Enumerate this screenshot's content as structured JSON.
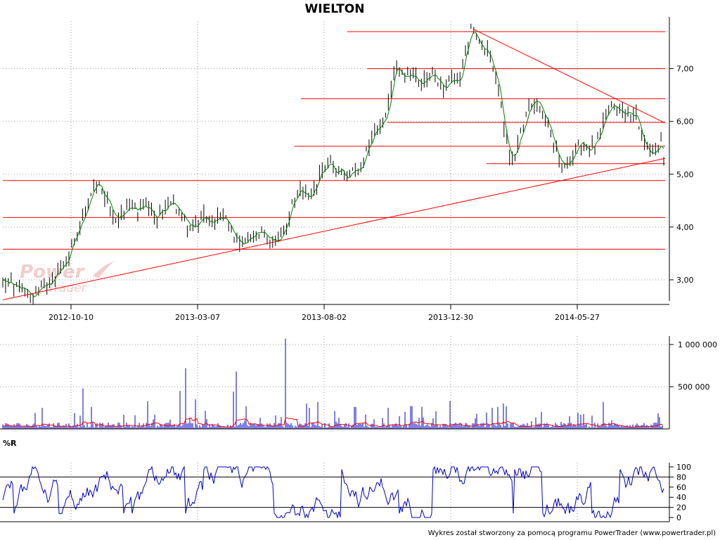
{
  "title": "WIELTON",
  "footer": "Wykres został stworzony za pomocą programu PowerTrader (www.powertrader.pl)",
  "watermark": {
    "line1": "Power",
    "line2": "Trader"
  },
  "colors": {
    "price_bars": "#000000",
    "price_line": "#008000",
    "levels": "#ff0000",
    "volume_bars": "#0000cc",
    "volume_avg": "#ff0000",
    "wr_line": "#0000cc",
    "grid": "#9a9a9a",
    "watermark": "#f0c8c8"
  },
  "chart_data": [
    {
      "type": "line",
      "panel": "price",
      "title": "WIELTON",
      "x_ticks": [
        "2012-10-10",
        "2013-03-07",
        "2013-08-02",
        "2013-12-30",
        "2014-05-27"
      ],
      "y_ticks": [
        "3,00",
        "4,00",
        "5,00",
        "6,00",
        "7,00"
      ],
      "ylim": [
        2.6,
        7.9
      ],
      "price_path": [
        [
          0,
          2.95
        ],
        [
          6,
          2.92
        ],
        [
          12,
          2.82
        ],
        [
          16,
          2.8
        ],
        [
          22,
          2.7
        ],
        [
          28,
          2.8
        ],
        [
          34,
          2.95
        ],
        [
          40,
          3.15
        ],
        [
          46,
          3.35
        ],
        [
          52,
          3.8
        ],
        [
          58,
          4.2
        ],
        [
          62,
          4.4
        ],
        [
          66,
          4.75
        ],
        [
          69,
          4.8
        ],
        [
          72,
          4.62
        ],
        [
          76,
          4.48
        ],
        [
          80,
          4.22
        ],
        [
          84,
          4.15
        ],
        [
          88,
          4.28
        ],
        [
          92,
          4.42
        ],
        [
          98,
          4.28
        ],
        [
          104,
          4.4
        ],
        [
          110,
          4.18
        ],
        [
          116,
          4.3
        ],
        [
          122,
          4.52
        ],
        [
          128,
          4.32
        ],
        [
          134,
          4.05
        ],
        [
          140,
          4.02
        ],
        [
          146,
          4.18
        ],
        [
          152,
          4.1
        ],
        [
          158,
          4.2
        ],
        [
          164,
          4.05
        ],
        [
          170,
          3.75
        ],
        [
          176,
          3.68
        ],
        [
          182,
          3.82
        ],
        [
          188,
          3.92
        ],
        [
          194,
          3.78
        ],
        [
          200,
          3.72
        ],
        [
          206,
          4.02
        ],
        [
          210,
          4.45
        ],
        [
          214,
          4.6
        ],
        [
          218,
          4.7
        ],
        [
          222,
          4.5
        ],
        [
          226,
          4.72
        ],
        [
          230,
          4.95
        ],
        [
          234,
          5.15
        ],
        [
          238,
          5.25
        ],
        [
          242,
          5.0
        ],
        [
          246,
          5.08
        ],
        [
          250,
          4.9
        ],
        [
          254,
          5.05
        ],
        [
          258,
          5.08
        ],
        [
          262,
          5.28
        ],
        [
          266,
          5.58
        ],
        [
          270,
          5.82
        ],
        [
          274,
          5.98
        ],
        [
          278,
          6.05
        ],
        [
          282,
          6.55
        ],
        [
          285,
          7.1
        ],
        [
          290,
          6.88
        ],
        [
          296,
          6.9
        ],
        [
          302,
          6.7
        ],
        [
          308,
          6.8
        ],
        [
          314,
          6.85
        ],
        [
          320,
          6.65
        ],
        [
          326,
          6.75
        ],
        [
          332,
          6.82
        ],
        [
          336,
          7.3
        ],
        [
          340,
          7.7
        ],
        [
          344,
          7.55
        ],
        [
          348,
          7.4
        ],
        [
          352,
          7.35
        ],
        [
          356,
          7.0
        ],
        [
          360,
          6.6
        ],
        [
          364,
          5.9
        ],
        [
          368,
          5.35
        ],
        [
          372,
          5.35
        ],
        [
          376,
          5.78
        ],
        [
          380,
          6.05
        ],
        [
          384,
          6.38
        ],
        [
          388,
          6.4
        ],
        [
          392,
          6.2
        ],
        [
          396,
          5.95
        ],
        [
          400,
          5.55
        ],
        [
          404,
          5.28
        ],
        [
          408,
          5.1
        ],
        [
          412,
          5.28
        ],
        [
          416,
          5.52
        ],
        [
          420,
          5.58
        ],
        [
          424,
          5.5
        ],
        [
          428,
          5.5
        ],
        [
          432,
          5.65
        ],
        [
          436,
          5.95
        ],
        [
          440,
          6.25
        ],
        [
          444,
          6.32
        ],
        [
          448,
          6.25
        ],
        [
          452,
          6.18
        ],
        [
          456,
          6.12
        ],
        [
          460,
          6.1
        ],
        [
          462,
          5.85
        ],
        [
          466,
          5.55
        ],
        [
          470,
          5.38
        ],
        [
          474,
          5.48
        ],
        [
          478,
          5.6
        ],
        [
          480,
          5.3
        ]
      ],
      "hlines": [
        {
          "y": 7.7,
          "from": 0.52,
          "to": 1.0
        },
        {
          "y": 7.0,
          "from": 0.55,
          "to": 1.0
        },
        {
          "y": 6.43,
          "from": 0.45,
          "to": 1.0
        },
        {
          "y": 5.98,
          "from": 0.58,
          "to": 1.0
        },
        {
          "y": 5.53,
          "from": 0.44,
          "to": 1.0
        },
        {
          "y": 5.2,
          "from": 0.73,
          "to": 1.0
        },
        {
          "y": 4.88,
          "from": 0.0,
          "to": 1.0
        },
        {
          "y": 4.18,
          "from": 0.0,
          "to": 1.0
        },
        {
          "y": 3.58,
          "from": 0.0,
          "to": 1.0
        }
      ],
      "trendlines": [
        {
          "x1": 0.0,
          "y1": 2.62,
          "x2": 1.0,
          "y2": 5.3
        },
        {
          "x1": 0.71,
          "y1": 7.75,
          "x2": 1.0,
          "y2": 5.97
        }
      ]
    },
    {
      "type": "bar",
      "panel": "volume",
      "y_ticks": [
        "500 000",
        "1 000 000"
      ],
      "ylim": [
        0,
        1100000
      ]
    },
    {
      "type": "line",
      "panel": "williams_r",
      "label": "%R",
      "y_ticks": [
        "0",
        "20",
        "40",
        "60",
        "80",
        "100"
      ],
      "ylim": [
        0,
        100
      ],
      "levels": [
        20,
        80
      ]
    }
  ]
}
